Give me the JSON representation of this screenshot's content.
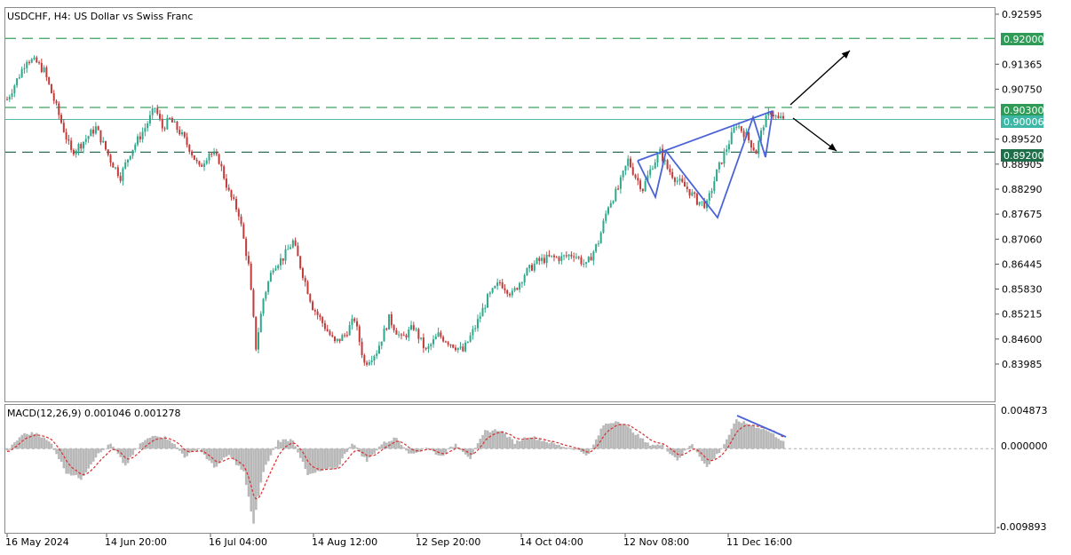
{
  "header": {
    "title": "USDCHF, H4:  US Dollar vs Swiss Franc"
  },
  "macd": {
    "label": "MACD(12,26,9) 0.001046 0.001278",
    "ticks": [
      "0.004873",
      "0.000000",
      "-0.009893"
    ]
  },
  "price_tags": {
    "level_high": "0.92000",
    "level_resist": "0.90300",
    "current": "0.90006",
    "level_support": "0.89200"
  },
  "colors": {
    "level_line": "#3ca060",
    "level_tag": "#2e9b57",
    "support_tag": "#1f6e4a",
    "current_tag": "#3cb7a6",
    "current_line": "#56b9b0",
    "bull": "#2ea88a",
    "bear": "#c23b3b",
    "pattern": "#4a63d6",
    "histogram": "#b8b8b8",
    "signal": "#d63030"
  },
  "icons": [
    "arrow-up-icon",
    "arrow-down-icon"
  ],
  "chart_data": {
    "type": "candlestick",
    "title": "USDCHF, H4:  US Dollar vs Swiss Franc",
    "y_range": [
      0.83685,
      0.92595
    ],
    "y_ticks": [
      "0.92595",
      "0.91365",
      "0.90750",
      "0.89520",
      "0.88905",
      "0.88290",
      "0.87675",
      "0.87060",
      "0.86445",
      "0.85830",
      "0.85215",
      "0.84600",
      "0.83985"
    ],
    "x_ticks": [
      "16 May 2024",
      "14 Jun 20:00",
      "16 Jul 04:00",
      "14 Aug 12:00",
      "12 Sep 20:00",
      "14 Oct 04:00",
      "12 Nov 08:00",
      "11 Dec 16:00"
    ],
    "levels": [
      0.92,
      0.903,
      0.892
    ],
    "current_price": 0.90006,
    "price_path": [
      {
        "t": 0,
        "p": 0.905
      },
      {
        "t": 5,
        "p": 0.911
      },
      {
        "t": 8,
        "p": 0.915
      },
      {
        "t": 12,
        "p": 0.914
      },
      {
        "t": 15,
        "p": 0.912
      },
      {
        "t": 20,
        "p": 0.903
      },
      {
        "t": 26,
        "p": 0.892
      },
      {
        "t": 30,
        "p": 0.894
      },
      {
        "t": 36,
        "p": 0.898
      },
      {
        "t": 42,
        "p": 0.89
      },
      {
        "t": 46,
        "p": 0.886
      },
      {
        "t": 50,
        "p": 0.892
      },
      {
        "t": 56,
        "p": 0.898
      },
      {
        "t": 60,
        "p": 0.903
      },
      {
        "t": 63,
        "p": 0.898
      },
      {
        "t": 66,
        "p": 0.9
      },
      {
        "t": 70,
        "p": 0.897
      },
      {
        "t": 74,
        "p": 0.893
      },
      {
        "t": 78,
        "p": 0.888
      },
      {
        "t": 82,
        "p": 0.892
      },
      {
        "t": 86,
        "p": 0.89
      },
      {
        "t": 90,
        "p": 0.882
      },
      {
        "t": 94,
        "p": 0.877
      },
      {
        "t": 98,
        "p": 0.864
      },
      {
        "t": 101,
        "p": 0.844
      },
      {
        "t": 104,
        "p": 0.856
      },
      {
        "t": 108,
        "p": 0.864
      },
      {
        "t": 112,
        "p": 0.866
      },
      {
        "t": 116,
        "p": 0.87
      },
      {
        "t": 120,
        "p": 0.862
      },
      {
        "t": 124,
        "p": 0.854
      },
      {
        "t": 128,
        "p": 0.85
      },
      {
        "t": 133,
        "p": 0.845
      },
      {
        "t": 137,
        "p": 0.847
      },
      {
        "t": 141,
        "p": 0.851
      },
      {
        "t": 145,
        "p": 0.84
      },
      {
        "t": 150,
        "p": 0.843
      },
      {
        "t": 155,
        "p": 0.851
      },
      {
        "t": 160,
        "p": 0.846
      },
      {
        "t": 165,
        "p": 0.849
      },
      {
        "t": 170,
        "p": 0.843
      },
      {
        "t": 175,
        "p": 0.847
      },
      {
        "t": 180,
        "p": 0.845
      },
      {
        "t": 185,
        "p": 0.843
      },
      {
        "t": 190,
        "p": 0.849
      },
      {
        "t": 195,
        "p": 0.856
      },
      {
        "t": 200,
        "p": 0.86
      },
      {
        "t": 205,
        "p": 0.857
      },
      {
        "t": 210,
        "p": 0.862
      },
      {
        "t": 215,
        "p": 0.865
      },
      {
        "t": 220,
        "p": 0.866
      },
      {
        "t": 225,
        "p": 0.866
      },
      {
        "t": 230,
        "p": 0.867
      },
      {
        "t": 235,
        "p": 0.864
      },
      {
        "t": 240,
        "p": 0.87
      },
      {
        "t": 244,
        "p": 0.879
      },
      {
        "t": 248,
        "p": 0.883
      },
      {
        "t": 252,
        "p": 0.89
      },
      {
        "t": 255,
        "p": 0.886
      },
      {
        "t": 258,
        "p": 0.883
      },
      {
        "t": 262,
        "p": 0.889
      },
      {
        "t": 265,
        "p": 0.892
      },
      {
        "t": 268,
        "p": 0.888
      },
      {
        "t": 272,
        "p": 0.885
      },
      {
        "t": 276,
        "p": 0.883
      },
      {
        "t": 280,
        "p": 0.88
      },
      {
        "t": 284,
        "p": 0.879
      },
      {
        "t": 288,
        "p": 0.887
      },
      {
        "t": 292,
        "p": 0.893
      },
      {
        "t": 296,
        "p": 0.899
      },
      {
        "t": 300,
        "p": 0.896
      },
      {
        "t": 304,
        "p": 0.892
      },
      {
        "t": 307,
        "p": 0.899
      },
      {
        "t": 310,
        "p": 0.902
      },
      {
        "t": 313,
        "p": 0.9
      },
      {
        "t": 315,
        "p": 0.9005
      }
    ],
    "macd_range": [
      -0.009893,
      0.004873
    ],
    "macd_histogram": [
      {
        "t": 0,
        "v": -0.0004
      },
      {
        "t": 6,
        "v": 0.0018
      },
      {
        "t": 12,
        "v": 0.002
      },
      {
        "t": 18,
        "v": 0.0006
      },
      {
        "t": 24,
        "v": -0.003
      },
      {
        "t": 30,
        "v": -0.0038
      },
      {
        "t": 36,
        "v": -0.001
      },
      {
        "t": 42,
        "v": 0.0006
      },
      {
        "t": 48,
        "v": -0.0022
      },
      {
        "t": 54,
        "v": 0.0006
      },
      {
        "t": 60,
        "v": 0.0018
      },
      {
        "t": 66,
        "v": 0.0012
      },
      {
        "t": 72,
        "v": -0.001
      },
      {
        "t": 78,
        "v": 0.0
      },
      {
        "t": 84,
        "v": -0.0024
      },
      {
        "t": 90,
        "v": -0.0008
      },
      {
        "t": 96,
        "v": -0.003
      },
      {
        "t": 100,
        "v": -0.0095
      },
      {
        "t": 104,
        "v": -0.0028
      },
      {
        "t": 110,
        "v": 0.001
      },
      {
        "t": 116,
        "v": 0.0012
      },
      {
        "t": 122,
        "v": -0.0034
      },
      {
        "t": 128,
        "v": -0.0028
      },
      {
        "t": 134,
        "v": -0.0024
      },
      {
        "t": 140,
        "v": 0.0008
      },
      {
        "t": 146,
        "v": -0.0016
      },
      {
        "t": 152,
        "v": 0.0006
      },
      {
        "t": 158,
        "v": 0.0014
      },
      {
        "t": 164,
        "v": -0.0008
      },
      {
        "t": 170,
        "v": 0.0002
      },
      {
        "t": 176,
        "v": -0.001
      },
      {
        "t": 182,
        "v": 0.0006
      },
      {
        "t": 188,
        "v": -0.0012
      },
      {
        "t": 194,
        "v": 0.0022
      },
      {
        "t": 200,
        "v": 0.0024
      },
      {
        "t": 206,
        "v": 0.0008
      },
      {
        "t": 212,
        "v": 0.0016
      },
      {
        "t": 218,
        "v": 0.001
      },
      {
        "t": 224,
        "v": 0.0004
      },
      {
        "t": 230,
        "v": 0.0
      },
      {
        "t": 236,
        "v": -0.0008
      },
      {
        "t": 242,
        "v": 0.003
      },
      {
        "t": 248,
        "v": 0.0036
      },
      {
        "t": 254,
        "v": 0.0022
      },
      {
        "t": 260,
        "v": 0.0006
      },
      {
        "t": 266,
        "v": 0.0004
      },
      {
        "t": 272,
        "v": -0.0014
      },
      {
        "t": 278,
        "v": 0.0006
      },
      {
        "t": 284,
        "v": -0.0024
      },
      {
        "t": 290,
        "v": 0.0
      },
      {
        "t": 296,
        "v": 0.0036
      },
      {
        "t": 302,
        "v": 0.003
      },
      {
        "t": 308,
        "v": 0.0024
      },
      {
        "t": 315,
        "v": 0.001
      }
    ]
  }
}
